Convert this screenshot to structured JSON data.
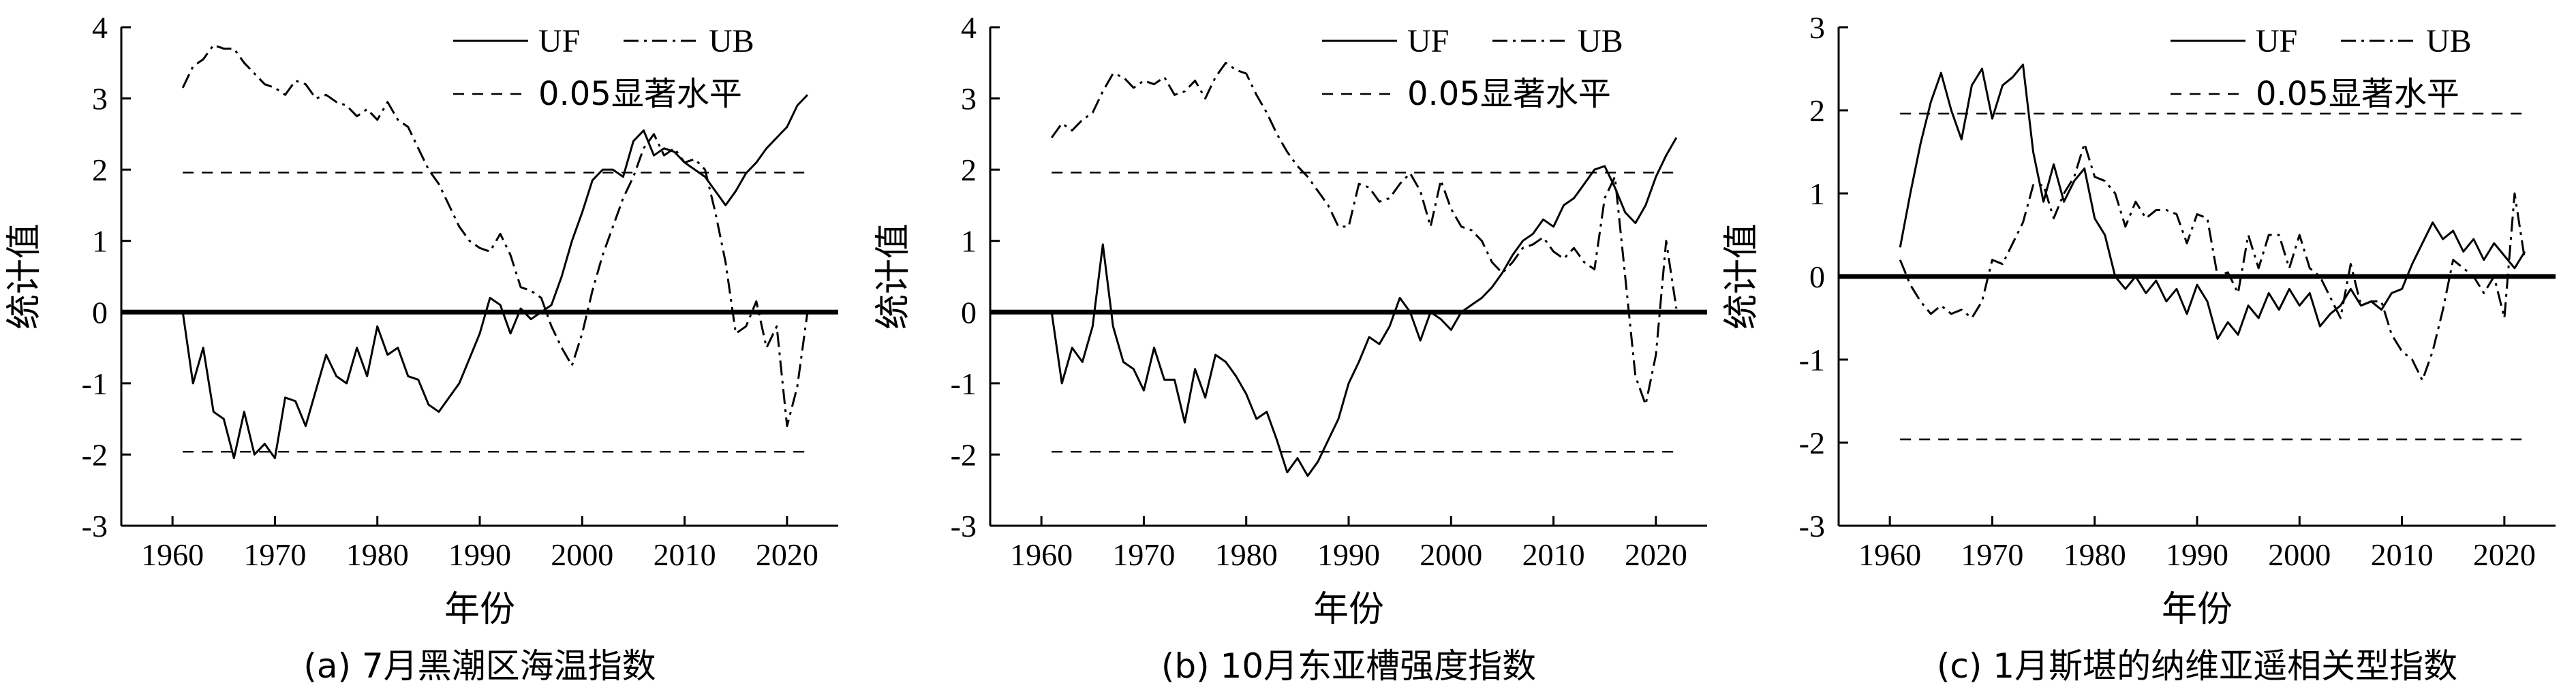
{
  "chart_data": [
    {
      "type": "line",
      "caption": "(a) 7月黑潮区海温指数",
      "xlabel": "年份",
      "ylabel": "统计值",
      "xlim": [
        1955,
        2025
      ],
      "ylim": [
        -3,
        4
      ],
      "xticks": [
        1960,
        1970,
        1980,
        1990,
        2000,
        2010,
        2020
      ],
      "yticks": [
        -3,
        -2,
        -1,
        0,
        1,
        2,
        3,
        4
      ],
      "legend": {
        "uf": "UF",
        "ub": "UB",
        "sig": "0.05显著水平"
      },
      "significance": [
        -1.96,
        1.96
      ],
      "x": [
        1961,
        1962,
        1963,
        1964,
        1965,
        1966,
        1967,
        1968,
        1969,
        1970,
        1971,
        1972,
        1973,
        1974,
        1975,
        1976,
        1977,
        1978,
        1979,
        1980,
        1981,
        1982,
        1983,
        1984,
        1985,
        1986,
        1987,
        1988,
        1989,
        1990,
        1991,
        1992,
        1993,
        1994,
        1995,
        1996,
        1997,
        1998,
        1999,
        2000,
        2001,
        2002,
        2003,
        2004,
        2005,
        2006,
        2007,
        2008,
        2009,
        2010,
        2011,
        2012,
        2013,
        2014,
        2015,
        2016,
        2017,
        2018,
        2019,
        2020,
        2021,
        2022
      ],
      "series": [
        {
          "name": "UF",
          "values": [
            0,
            -1.0,
            -0.5,
            -1.4,
            -1.5,
            -2.05,
            -1.4,
            -2.0,
            -1.85,
            -2.05,
            -1.2,
            -1.25,
            -1.6,
            -1.1,
            -0.6,
            -0.9,
            -1.0,
            -0.5,
            -0.9,
            -0.2,
            -0.6,
            -0.5,
            -0.9,
            -0.95,
            -1.3,
            -1.4,
            -1.2,
            -1.0,
            -0.65,
            -0.3,
            0.2,
            0.1,
            -0.3,
            0.05,
            -0.1,
            0.0,
            0.1,
            0.5,
            1.0,
            1.4,
            1.85,
            2.0,
            2.0,
            1.9,
            2.4,
            2.55,
            2.2,
            2.3,
            2.25,
            2.1,
            2.0,
            1.9,
            1.7,
            1.5,
            1.7,
            1.95,
            2.1,
            2.3,
            2.45,
            2.6,
            2.9,
            3.05
          ]
        },
        {
          "name": "UB",
          "values": [
            3.15,
            3.45,
            3.55,
            3.75,
            3.7,
            3.7,
            3.5,
            3.35,
            3.2,
            3.15,
            3.05,
            3.25,
            3.2,
            3.0,
            3.05,
            2.95,
            2.9,
            2.75,
            2.85,
            2.7,
            2.95,
            2.7,
            2.6,
            2.3,
            2.0,
            1.8,
            1.5,
            1.2,
            1.0,
            0.9,
            0.85,
            1.1,
            0.8,
            0.35,
            0.3,
            0.2,
            -0.2,
            -0.5,
            -0.75,
            -0.3,
            0.3,
            0.8,
            1.2,
            1.6,
            1.9,
            2.3,
            2.5,
            2.2,
            2.3,
            2.1,
            2.15,
            2.0,
            1.4,
            0.7,
            -0.3,
            -0.2,
            0.15,
            -0.5,
            -0.2,
            -1.6,
            -1.05,
            0.0
          ]
        }
      ]
    },
    {
      "type": "line",
      "caption": "(b) 10月东亚槽强度指数",
      "xlabel": "年份",
      "ylabel": "统计值",
      "xlim": [
        1955,
        2025
      ],
      "ylim": [
        -3,
        4
      ],
      "xticks": [
        1960,
        1970,
        1980,
        1990,
        2000,
        2010,
        2020
      ],
      "yticks": [
        -3,
        -2,
        -1,
        0,
        1,
        2,
        3,
        4
      ],
      "legend": {
        "uf": "UF",
        "ub": "UB",
        "sig": "0.05显著水平"
      },
      "significance": [
        -1.96,
        1.96
      ],
      "x": [
        1961,
        1962,
        1963,
        1964,
        1965,
        1966,
        1967,
        1968,
        1969,
        1970,
        1971,
        1972,
        1973,
        1974,
        1975,
        1976,
        1977,
        1978,
        1979,
        1980,
        1981,
        1982,
        1983,
        1984,
        1985,
        1986,
        1987,
        1988,
        1989,
        1990,
        1991,
        1992,
        1993,
        1994,
        1995,
        1996,
        1997,
        1998,
        1999,
        2000,
        2001,
        2002,
        2003,
        2004,
        2005,
        2006,
        2007,
        2008,
        2009,
        2010,
        2011,
        2012,
        2013,
        2014,
        2015,
        2016,
        2017,
        2018,
        2019,
        2020,
        2021,
        2022
      ],
      "series": [
        {
          "name": "UF",
          "values": [
            0,
            -1.0,
            -0.5,
            -0.7,
            -0.2,
            0.95,
            -0.2,
            -0.7,
            -0.8,
            -1.1,
            -0.5,
            -0.95,
            -0.95,
            -1.55,
            -0.8,
            -1.2,
            -0.6,
            -0.7,
            -0.9,
            -1.15,
            -1.5,
            -1.4,
            -1.8,
            -2.25,
            -2.05,
            -2.3,
            -2.1,
            -1.8,
            -1.5,
            -1.0,
            -0.7,
            -0.35,
            -0.45,
            -0.2,
            0.2,
            0.0,
            -0.4,
            0.0,
            -0.1,
            -0.25,
            0.0,
            0.1,
            0.2,
            0.35,
            0.55,
            0.8,
            1.0,
            1.1,
            1.3,
            1.2,
            1.5,
            1.6,
            1.8,
            2.0,
            2.05,
            1.75,
            1.4,
            1.25,
            1.5,
            1.9,
            2.2,
            2.45
          ]
        },
        {
          "name": "UB",
          "values": [
            2.45,
            2.65,
            2.55,
            2.7,
            2.8,
            3.1,
            3.35,
            3.3,
            3.15,
            3.25,
            3.2,
            3.3,
            3.05,
            3.1,
            3.25,
            3.0,
            3.3,
            3.5,
            3.4,
            3.35,
            3.05,
            2.8,
            2.5,
            2.25,
            2.05,
            1.9,
            1.7,
            1.5,
            1.2,
            1.2,
            1.8,
            1.75,
            1.55,
            1.6,
            1.8,
            1.95,
            1.7,
            1.2,
            1.85,
            1.45,
            1.2,
            1.15,
            1.0,
            0.7,
            0.55,
            0.7,
            0.9,
            0.95,
            1.05,
            0.85,
            0.75,
            0.9,
            0.7,
            0.6,
            1.6,
            1.9,
            0.5,
            -0.9,
            -1.3,
            -0.6,
            1.0,
            0.05
          ]
        }
      ]
    },
    {
      "type": "line",
      "caption": "(c) 1月斯堪的纳维亚遥相关型指数",
      "xlabel": "年份",
      "ylabel": "统计值",
      "xlim": [
        1955,
        2025
      ],
      "ylim": [
        -3,
        3
      ],
      "xticks": [
        1960,
        1970,
        1980,
        1990,
        2000,
        2010,
        2020
      ],
      "yticks": [
        -3,
        -2,
        -1,
        0,
        1,
        2,
        3
      ],
      "legend": {
        "uf": "UF",
        "ub": "UB",
        "sig": "0.05显著水平"
      },
      "significance": [
        -1.96,
        1.96
      ],
      "x": [
        1961,
        1962,
        1963,
        1964,
        1965,
        1966,
        1967,
        1968,
        1969,
        1970,
        1971,
        1972,
        1973,
        1974,
        1975,
        1976,
        1977,
        1978,
        1979,
        1980,
        1981,
        1982,
        1983,
        1984,
        1985,
        1986,
        1987,
        1988,
        1989,
        1990,
        1991,
        1992,
        1993,
        1994,
        1995,
        1996,
        1997,
        1998,
        1999,
        2000,
        2001,
        2002,
        2003,
        2004,
        2005,
        2006,
        2007,
        2008,
        2009,
        2010,
        2011,
        2012,
        2013,
        2014,
        2015,
        2016,
        2017,
        2018,
        2019,
        2020,
        2021,
        2022
      ],
      "series": [
        {
          "name": "UF",
          "values": [
            0.35,
            1.0,
            1.6,
            2.1,
            2.45,
            2.0,
            1.65,
            2.3,
            2.5,
            1.9,
            2.3,
            2.4,
            2.55,
            1.5,
            0.9,
            1.35,
            0.9,
            1.15,
            1.3,
            0.7,
            0.5,
            0.0,
            -0.15,
            0.0,
            -0.2,
            -0.05,
            -0.3,
            -0.15,
            -0.45,
            -0.1,
            -0.3,
            -0.75,
            -0.55,
            -0.7,
            -0.35,
            -0.5,
            -0.2,
            -0.4,
            -0.15,
            -0.35,
            -0.2,
            -0.6,
            -0.45,
            -0.35,
            -0.15,
            -0.35,
            -0.3,
            -0.4,
            -0.2,
            -0.15,
            0.15,
            0.4,
            0.65,
            0.45,
            0.55,
            0.3,
            0.45,
            0.2,
            0.4,
            0.25,
            0.1,
            0.3
          ]
        },
        {
          "name": "UB",
          "values": [
            0.2,
            -0.1,
            -0.3,
            -0.45,
            -0.35,
            -0.45,
            -0.4,
            -0.5,
            -0.3,
            0.2,
            0.15,
            0.4,
            0.65,
            1.1,
            1.1,
            0.7,
            1.0,
            1.2,
            1.6,
            1.2,
            1.15,
            1.0,
            0.6,
            0.9,
            0.7,
            0.8,
            0.8,
            0.75,
            0.4,
            0.75,
            0.7,
            0.0,
            0.05,
            -0.2,
            0.5,
            0.1,
            0.5,
            0.5,
            0.1,
            0.5,
            0.1,
            0.0,
            -0.25,
            -0.5,
            0.15,
            -0.35,
            -0.3,
            -0.3,
            -0.7,
            -0.9,
            -1.0,
            -1.25,
            -0.9,
            -0.4,
            0.2,
            0.1,
            0.0,
            -0.2,
            0.0,
            -0.5,
            1.0,
            0.2
          ]
        }
      ]
    }
  ]
}
